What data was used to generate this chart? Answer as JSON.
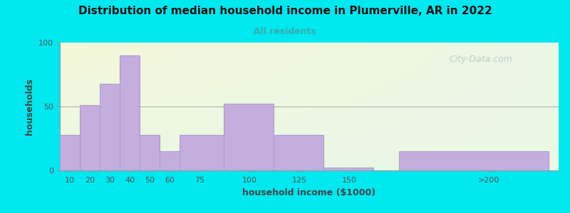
{
  "title": "Distribution of median household income in Plumerville, AR in 2022",
  "subtitle": "All residents",
  "xlabel": "household income ($1000)",
  "ylabel": "households",
  "background_outer": "#00e8f0",
  "bar_color": "#c4aede",
  "bar_edge_color": "#b09ccc",
  "tick_labels": [
    "10",
    "20",
    "30",
    "40",
    "50",
    "60",
    "75",
    "100",
    "125",
    "150",
    ">200"
  ],
  "x_tick_pos": [
    10,
    20,
    30,
    40,
    50,
    60,
    75,
    100,
    125,
    150,
    220
  ],
  "bar_left": [
    5,
    15,
    25,
    35,
    45,
    55,
    65,
    87,
    112,
    137,
    175
  ],
  "bar_right": [
    15,
    25,
    35,
    45,
    55,
    65,
    87,
    112,
    137,
    162,
    250
  ],
  "values": [
    28,
    51,
    68,
    90,
    28,
    15,
    28,
    52,
    28,
    2,
    15
  ],
  "ylim": [
    0,
    100
  ],
  "yticks": [
    0,
    50,
    100
  ],
  "watermark": "City-Data.com"
}
